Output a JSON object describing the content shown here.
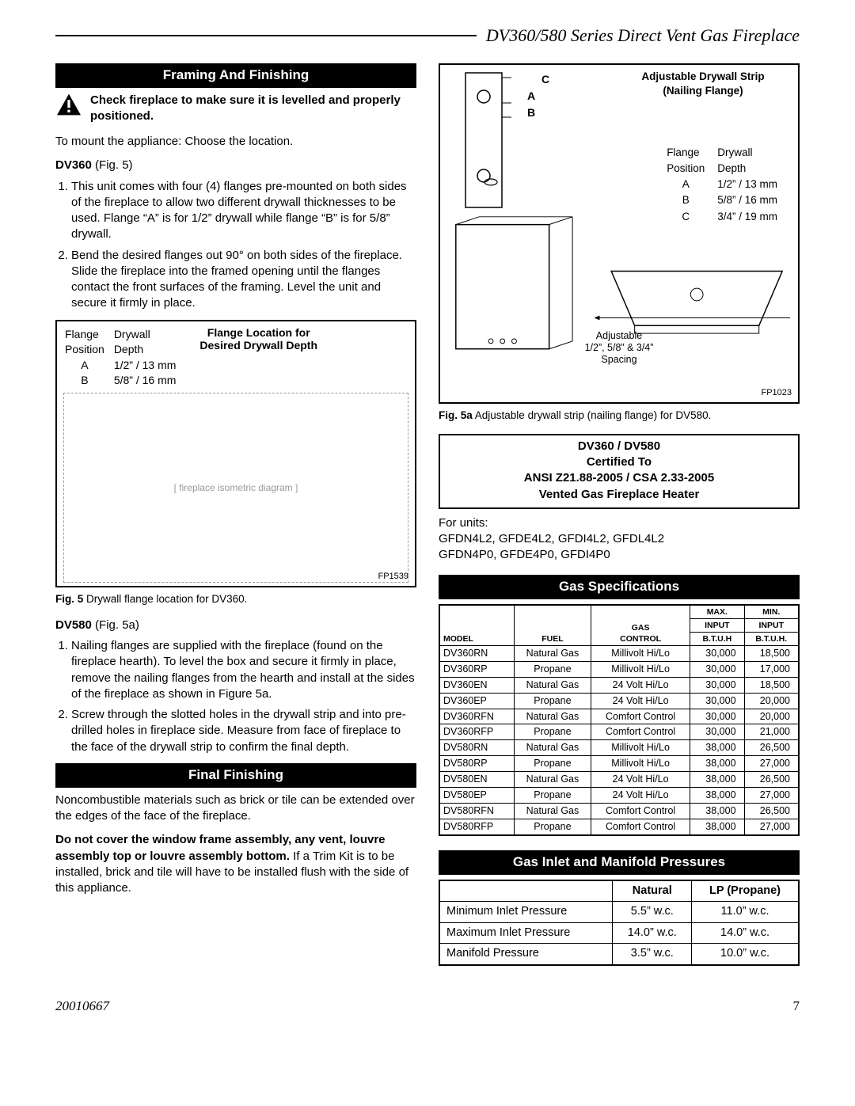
{
  "header": {
    "title": "DV360/580 Series Direct Vent Gas Fireplace"
  },
  "footer": {
    "docnum": "20010667",
    "page": "7"
  },
  "sections": {
    "framing": "Framing And Finishing",
    "final": "Final Finishing",
    "gasspec": "Gas Specifications",
    "inlet": "Gas Inlet and Manifold Pressures"
  },
  "warning": "Check fireplace to make sure it is levelled and properly positioned.",
  "mount_intro": "To mount the appliance: Choose the location.",
  "dv360_label": "DV360",
  "dv360_fig": " (Fig. 5)",
  "dv360_steps": [
    "This unit comes with four (4) flanges pre-mounted on both sides of the fireplace to allow two different drywall thicknesses to be used. Flange “A” is for 1/2” drywall while flange “B” is for 5/8” drywall.",
    "Bend the desired flanges out 90° on both sides of the fireplace. Slide the fireplace into the framed opening until the flanges contact the front surfaces of the framing. Level the unit and secure it firmly in place."
  ],
  "flange_title": "Flange Location for\nDesired Drywall Depth",
  "flange_table_left": {
    "h1": "Flange",
    "h2": "Drywall",
    "h3": "Position",
    "h4": "Depth",
    "rows": [
      [
        "A",
        "1/2” / 13 mm"
      ],
      [
        "B",
        "5/8” / 16 mm"
      ]
    ]
  },
  "fp_left": "FP1539",
  "fig5_cap_b": "Fig. 5",
  "fig5_cap": "  Drywall flange location for DV360.",
  "dv580_label": "DV580",
  "dv580_fig": " (Fig. 5a)",
  "dv580_steps": [
    "Nailing flanges are supplied with the fireplace (found on the fireplace hearth). To level the box and secure it firmly in place, remove the nailing flanges from the hearth and install at the sides of the fireplace as shown in Figure 5a.",
    "Screw through the slotted holes in the drywall strip and into pre-drilled holes in fireplace side. Measure from face of fireplace to the face of the drywall strip to confirm the final depth."
  ],
  "final_p1": "Noncombustible materials such as brick or tile can be extended over the edges of the face of the fireplace.",
  "final_p2_b": "Do not cover the window frame assembly, any vent, louvre assembly top or louvre assembly bottom.",
  "final_p2": " If a Trim Kit is to be installed, brick and tile will have to be installed flush with the side of this appliance.",
  "adj_title": "Adjustable Drywall Strip\n(Nailing Flange)",
  "flange_table_right": {
    "h1": "Flange",
    "h2": "Drywall",
    "h3": "Position",
    "h4": "Depth",
    "rows": [
      [
        "A",
        "1/2” / 13 mm"
      ],
      [
        "B",
        "5/8” / 16 mm"
      ],
      [
        "C",
        "3/4” / 19 mm"
      ]
    ]
  },
  "abc": {
    "a": "A",
    "b": "B",
    "c": "C"
  },
  "adj_note": "Adjustable\n1/2”, 5/8” & 3/4”\nSpacing",
  "fp_right": "FP1023",
  "fig5a_cap_b": "Fig. 5a",
  "fig5a_cap": "  Adjustable drywall strip (nailing flange) for DV580.",
  "cert": {
    "l1": "DV360 / DV580",
    "l2": "Certified To",
    "l3": "ANSI Z21.88-2005 / CSA 2.33-2005",
    "l4": "Vented Gas Fireplace Heater"
  },
  "for_units_label": "For units:",
  "for_units_1": "GFDN4L2, GFDE4L2, GFDI4L2, GFDL4L2",
  "for_units_2": "GFDN4P0, GFDE4P0, GFDI4P0",
  "spec_headers": {
    "model": "Model",
    "fuel": "Fuel",
    "gas": "Gas",
    "control": "Control",
    "max": "Max.",
    "min": "Min.",
    "input": "Input",
    "btuh": "B.T.U.H",
    "btuh2": "B.T.U.H."
  },
  "spec_rows": [
    [
      "DV360RN",
      "Natural Gas",
      "Millivolt Hi/Lo",
      "30,000",
      "18,500"
    ],
    [
      "DV360RP",
      "Propane",
      "Millivolt Hi/Lo",
      "30,000",
      "17,000"
    ],
    [
      "DV360EN",
      "Natural Gas",
      "24 Volt Hi/Lo",
      "30,000",
      "18,500"
    ],
    [
      "DV360EP",
      "Propane",
      "24 Volt Hi/Lo",
      "30,000",
      "20,000"
    ],
    [
      "DV360RFN",
      "Natural Gas",
      "Comfort Control",
      "30,000",
      "20,000"
    ],
    [
      "DV360RFP",
      "Propane",
      "Comfort Control",
      "30,000",
      "21,000"
    ],
    [
      "DV580RN",
      "Natural Gas",
      "Millivolt Hi/Lo",
      "38,000",
      "26,500"
    ],
    [
      "DV580RP",
      "Propane",
      "Millivolt Hi/Lo",
      "38,000",
      "27,000"
    ],
    [
      "DV580EN",
      "Natural Gas",
      "24 Volt Hi/Lo",
      "38,000",
      "26,500"
    ],
    [
      "DV580EP",
      "Propane",
      "24 Volt Hi/Lo",
      "38,000",
      "27,000"
    ],
    [
      "DV580RFN",
      "Natural Gas",
      "Comfort Control",
      "38,000",
      "26,500"
    ],
    [
      "DV580RFP",
      "Propane",
      "Comfort Control",
      "38,000",
      "27,000"
    ]
  ],
  "press_headers": {
    "blank": "",
    "nat": "Natural",
    "lp": "LP (Propane)"
  },
  "press_rows": [
    [
      "Minimum Inlet Pressure",
      "5.5” w.c.",
      "11.0” w.c."
    ],
    [
      "Maximum Inlet Pressure",
      "14.0” w.c.",
      "14.0” w.c."
    ],
    [
      "Manifold Pressure",
      "3.5” w.c.",
      "10.0” w.c."
    ]
  ]
}
